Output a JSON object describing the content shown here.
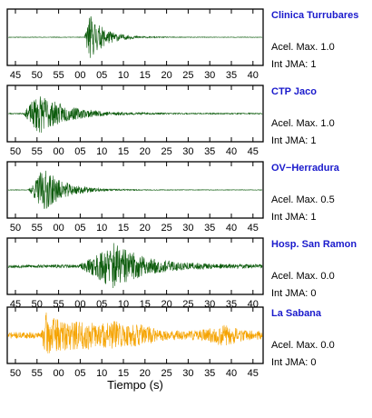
{
  "figure": {
    "xlabel": "Tiempo (s)",
    "station_color": "#1a1acc",
    "accel_prefix": "Acel. Max.",
    "jma_prefix": "Int JMA:"
  },
  "chart_data": [
    {
      "type": "line",
      "station": "Clinica Turrubares",
      "accel_max": "1.0",
      "int_jma": "1",
      "color": "#0a5a0a",
      "x_tick_labels": [
        "45",
        "50",
        "55",
        "00",
        "05",
        "10",
        "15",
        "20",
        "25",
        "30",
        "35",
        "40"
      ],
      "signal": {
        "onset": 0.3,
        "peak": 0.32,
        "amplitude": 0.9,
        "pre_noise": 0.01,
        "coda": 0.06,
        "tail": 0.01,
        "post": [],
        "seed": 11
      }
    },
    {
      "type": "line",
      "station": "CTP Jaco",
      "accel_max": "1.0",
      "int_jma": "1",
      "color": "#0a5a0a",
      "x_tick_labels": [
        "50",
        "55",
        "00",
        "05",
        "10",
        "15",
        "20",
        "25",
        "30",
        "35",
        "40",
        "45"
      ],
      "signal": {
        "onset": 0.06,
        "peak": 0.12,
        "amplitude": 0.8,
        "pre_noise": 0.02,
        "coda": 0.11,
        "tail": 0.02,
        "post": [],
        "seed": 23
      }
    },
    {
      "type": "line",
      "station": "OV−Herradura",
      "accel_max": "0.5",
      "int_jma": "1",
      "color": "#0a5a0a",
      "x_tick_labels": [
        "50",
        "55",
        "00",
        "05",
        "10",
        "15",
        "20",
        "25",
        "30",
        "35",
        "40",
        "45"
      ],
      "signal": {
        "onset": 0.08,
        "peak": 0.14,
        "amplitude": 0.85,
        "pre_noise": 0.01,
        "coda": 0.08,
        "tail": 0.01,
        "post": [],
        "seed": 37
      }
    },
    {
      "type": "line",
      "station": "Hosp. San Ramon",
      "accel_max": "0.0",
      "int_jma": "0",
      "color": "#0a5a0a",
      "x_tick_labels": [
        "45",
        "50",
        "55",
        "00",
        "05",
        "10",
        "15",
        "20",
        "25",
        "30",
        "35",
        "40"
      ],
      "signal": {
        "onset": 0.28,
        "peak": 0.42,
        "amplitude": 0.9,
        "pre_noise": 0.06,
        "coda": 0.12,
        "tail": 0.07,
        "post": [],
        "seed": 53
      }
    },
    {
      "type": "line",
      "station": "La Sabana",
      "accel_max": "0.0",
      "int_jma": "0",
      "color": "#f5a300",
      "x_tick_labels": [
        "50",
        "55",
        "00",
        "05",
        "10",
        "15",
        "20",
        "25",
        "30",
        "35",
        "40",
        "45"
      ],
      "signal": {
        "onset": 0.13,
        "peak": 0.15,
        "amplitude": 0.9,
        "pre_noise": 0.12,
        "coda": 0.1,
        "tail": 0.18,
        "post": [
          [
            0.3,
            0.22
          ],
          [
            0.42,
            0.3
          ],
          [
            0.52,
            0.2
          ],
          [
            0.85,
            0.22
          ]
        ],
        "seed": 71
      }
    }
  ]
}
